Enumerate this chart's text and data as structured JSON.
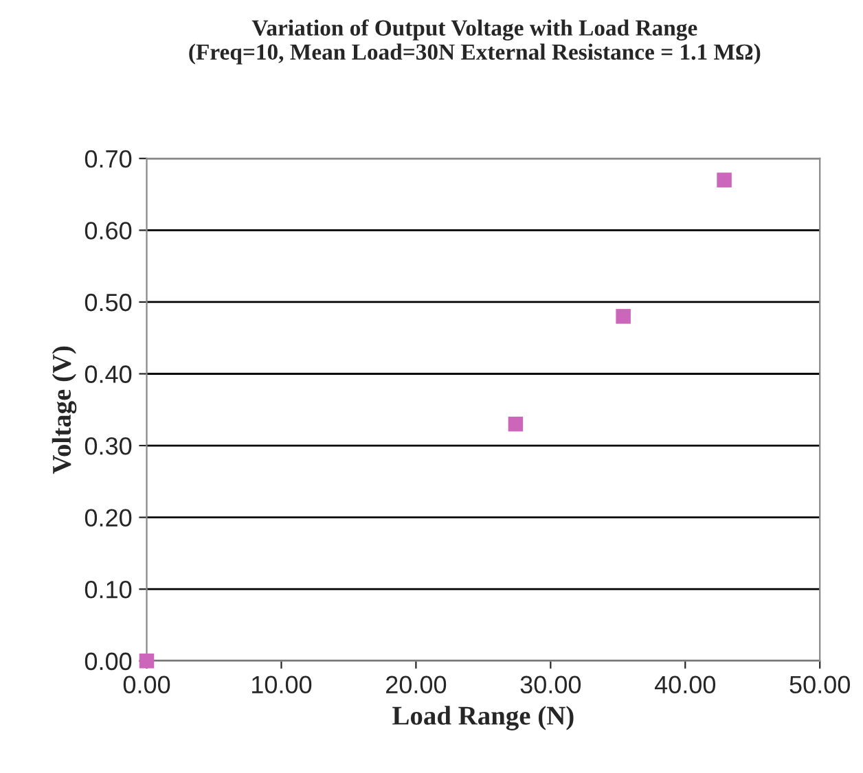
{
  "chart_data": {
    "type": "scatter",
    "title": "Variation of Output Voltage with Load Range\n(Freq=10, Mean Load=30N External Resistance = 1.1 MΩ)",
    "xlabel": "Load Range (N)",
    "ylabel": "Voltage (V)",
    "x": [
      0,
      27.4,
      35.4,
      42.9
    ],
    "series": [
      {
        "color": "#cc66bb",
        "values": [
          0.0,
          0.33,
          0.48,
          0.67
        ]
      }
    ],
    "marker": "square",
    "grid": "y",
    "xlim": [
      0,
      50
    ],
    "xticks": [
      {
        "value": 0,
        "label": "0.00"
      },
      {
        "value": 10,
        "label": "10.00"
      },
      {
        "value": 20,
        "label": "20.00"
      },
      {
        "value": 30,
        "label": "30.00"
      },
      {
        "value": 40,
        "label": "40.00"
      },
      {
        "value": 50,
        "label": "50.00"
      }
    ],
    "ylim": [
      0,
      0.7
    ],
    "yticks": [
      {
        "value": 0,
        "label": "0.00"
      },
      {
        "value": 0.1,
        "label": "0.10"
      },
      {
        "value": 0.2,
        "label": "0.20"
      },
      {
        "value": 0.3,
        "label": "0.30"
      },
      {
        "value": 0.4,
        "label": "0.40"
      },
      {
        "value": 0.5,
        "label": "0.50"
      },
      {
        "value": 0.6,
        "label": "0.60"
      },
      {
        "value": 0.7,
        "label": "0.70"
      }
    ]
  }
}
